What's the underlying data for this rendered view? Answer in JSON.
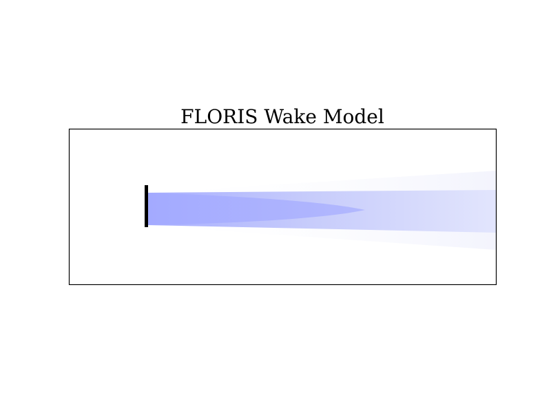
{
  "figure": {
    "title": "FLORIS Wake Model"
  },
  "colors": {
    "near_wake": "#a6adff",
    "far_wake": "#dfe3fc",
    "wake_halo": "#f3f4fd",
    "turbine": "#000000",
    "frame": "#000000"
  },
  "elements": {
    "turbine": "wind-turbine-rotor",
    "near_wake": "near-wake-region",
    "far_wake": "far-wake-region",
    "halo": "wake-expansion-halo"
  }
}
